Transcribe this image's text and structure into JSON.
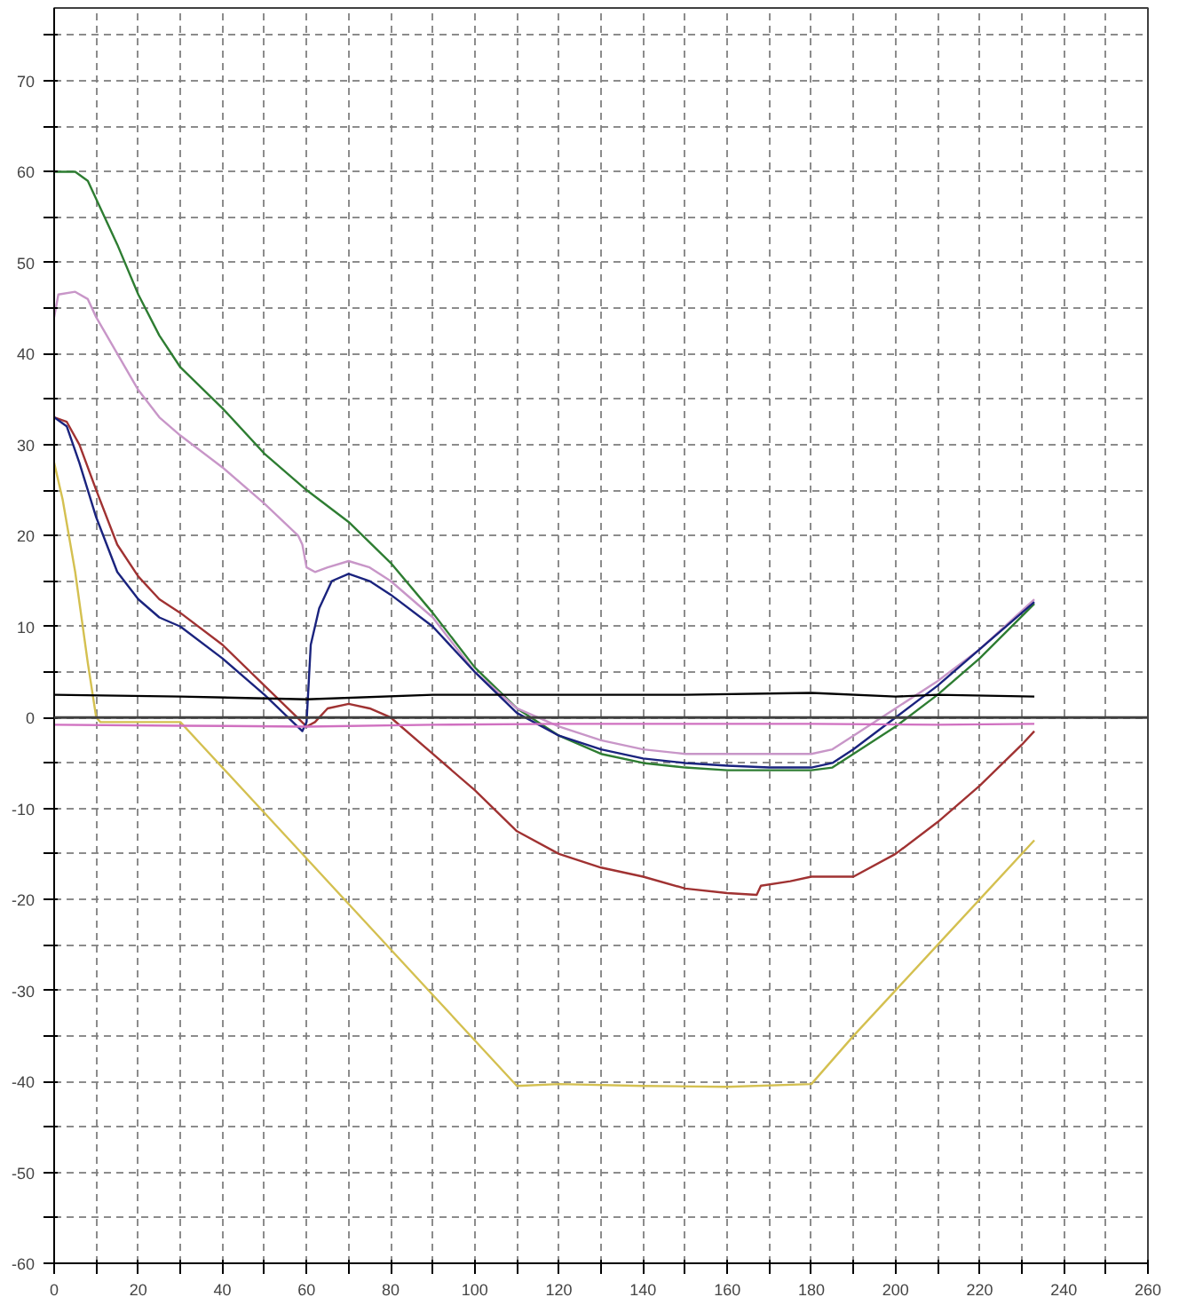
{
  "chart_data": {
    "type": "line",
    "xlim": [
      0,
      260
    ],
    "ylim": [
      -60,
      78
    ],
    "xticks": [
      0,
      {
        "value": 10,
        "label": null
      },
      20,
      {
        "value": 30,
        "label": null
      },
      40,
      {
        "value": 50,
        "label": null
      },
      60,
      {
        "value": 70,
        "label": null
      },
      80,
      {
        "value": 90,
        "label": null
      },
      100,
      {
        "value": 110,
        "label": null
      },
      120,
      {
        "value": 130,
        "label": null
      },
      140,
      {
        "value": 150,
        "label": null
      },
      160,
      {
        "value": 170,
        "label": null
      },
      180,
      {
        "value": 190,
        "label": null
      },
      200,
      {
        "value": 210,
        "label": null
      },
      220,
      {
        "value": 230,
        "label": null
      },
      240,
      {
        "value": 250,
        "label": null
      },
      260
    ],
    "yticks": [
      -60,
      {
        "value": -55,
        "label": null
      },
      -50,
      {
        "value": -45,
        "label": null
      },
      -40,
      {
        "value": -35,
        "label": null
      },
      -30,
      {
        "value": -25,
        "label": null
      },
      -20,
      {
        "value": -15,
        "label": null
      },
      -10,
      {
        "value": -5,
        "label": null
      },
      0,
      {
        "value": 5,
        "label": null
      },
      10,
      {
        "value": 15,
        "label": null
      },
      20,
      {
        "value": 25,
        "label": null
      },
      30,
      {
        "value": 35,
        "label": null
      },
      40,
      {
        "value": 45,
        "label": null
      },
      50,
      {
        "value": 55,
        "label": null
      },
      60,
      {
        "value": 65,
        "label": null
      },
      70,
      {
        "value": 75,
        "label": null
      }
    ],
    "grid": true,
    "marker": "none",
    "line_style": "solid",
    "ref_lines": [
      {
        "axis": "y",
        "value": 0,
        "color": "#404040"
      }
    ],
    "series": [
      {
        "color": "#2e7d32",
        "x": [
          0,
          5,
          8,
          10,
          15,
          20,
          25,
          30,
          40,
          50,
          60,
          70,
          80,
          90,
          100,
          110,
          120,
          130,
          140,
          150,
          160,
          170,
          180,
          185,
          190,
          200,
          210,
          220,
          233
        ],
        "values": [
          60,
          60,
          59,
          57,
          52,
          46.5,
          42,
          38.5,
          34,
          29,
          25,
          21.5,
          17,
          11.5,
          5.5,
          1,
          -2,
          -4,
          -5,
          -5.5,
          -5.8,
          -5.8,
          -5.8,
          -5.5,
          -4,
          -1,
          2.5,
          6.5,
          12.5
        ]
      },
      {
        "color": "#c896c8",
        "x": [
          0,
          1,
          5,
          8,
          10,
          15,
          20,
          25,
          30,
          40,
          50,
          58,
          59,
          60,
          62,
          65,
          70,
          75,
          80,
          90,
          100,
          110,
          120,
          130,
          140,
          150,
          160,
          170,
          180,
          185,
          190,
          200,
          210,
          220,
          233
        ],
        "values": [
          44,
          46.5,
          46.8,
          46,
          44,
          40,
          36,
          33,
          31,
          27.5,
          23.5,
          20,
          19,
          16.5,
          16,
          16.5,
          17.2,
          16.5,
          15,
          11,
          5,
          1,
          -1,
          -2.5,
          -3.5,
          -4,
          -4,
          -4,
          -4,
          -3.5,
          -2,
          1,
          4,
          7.5,
          13
        ]
      },
      {
        "color": "#a03232",
        "x": [
          0,
          3,
          6,
          10,
          15,
          20,
          25,
          30,
          40,
          50,
          60,
          62,
          65,
          70,
          75,
          80,
          90,
          100,
          110,
          120,
          130,
          140,
          150,
          160,
          167,
          168,
          175,
          180,
          190,
          200,
          210,
          220,
          230,
          233
        ],
        "values": [
          33,
          32.5,
          30,
          25,
          19,
          15.5,
          13,
          11.5,
          8,
          3.5,
          -1,
          -0.5,
          1,
          1.5,
          1,
          0,
          -4,
          -8,
          -12.5,
          -15,
          -16.5,
          -17.5,
          -18.8,
          -19.3,
          -19.5,
          -18.5,
          -18,
          -17.5,
          -17.5,
          -15,
          -11.5,
          -7.5,
          -3,
          -1.5
        ]
      },
      {
        "color": "#1a237e",
        "x": [
          0,
          3,
          6,
          10,
          15,
          20,
          25,
          30,
          40,
          50,
          59,
          60,
          61,
          63,
          66,
          70,
          75,
          80,
          90,
          100,
          110,
          120,
          130,
          140,
          150,
          160,
          170,
          180,
          185,
          190,
          200,
          210,
          220,
          233
        ],
        "values": [
          33,
          32,
          28,
          22,
          16,
          13,
          11,
          10,
          6.5,
          2.5,
          -1.5,
          -0.5,
          8,
          12,
          15,
          15.8,
          15,
          13.5,
          10,
          5,
          0.5,
          -2,
          -3.5,
          -4.5,
          -5,
          -5.3,
          -5.5,
          -5.5,
          -5,
          -3.5,
          0,
          3.5,
          7.5,
          12.7
        ]
      },
      {
        "color": "#d4c050",
        "x": [
          0,
          2,
          5,
          8,
          10,
          11,
          20,
          30,
          35,
          40,
          50,
          60,
          70,
          80,
          90,
          100,
          110,
          120,
          140,
          160,
          180,
          190,
          200,
          210,
          220,
          233
        ],
        "values": [
          28,
          24,
          16,
          6,
          0,
          -0.5,
          -0.5,
          -0.5,
          -3,
          -5.5,
          -10.5,
          -15.5,
          -20.5,
          -25.5,
          -30.5,
          -35.5,
          -40.5,
          -40.3,
          -40.5,
          -40.6,
          -40.3,
          -35,
          -30,
          -25,
          -20,
          -13.5
        ]
      },
      {
        "color": "#000000",
        "x": [
          0,
          30,
          60,
          90,
          120,
          150,
          180,
          200,
          210,
          233
        ],
        "values": [
          2.5,
          2.3,
          2,
          2.5,
          2.5,
          2.5,
          2.7,
          2.3,
          2.5,
          2.3
        ]
      },
      {
        "color": "#d070c0",
        "x": [
          0,
          30,
          60,
          90,
          120,
          150,
          180,
          210,
          233
        ],
        "values": [
          -0.8,
          -0.9,
          -1,
          -0.8,
          -0.7,
          -0.7,
          -0.7,
          -0.8,
          -0.7
        ]
      }
    ]
  }
}
